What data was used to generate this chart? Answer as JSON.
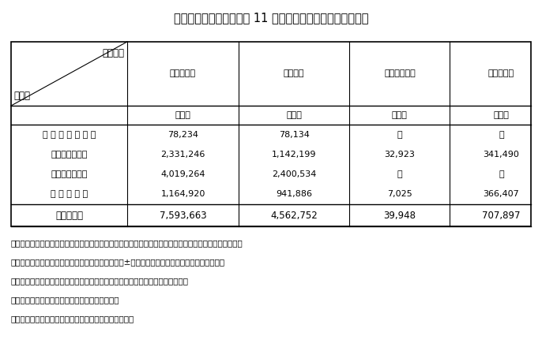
{
  "title": "（表１－１－１）　平成 11 年度における防災関係予算額等",
  "background_color": "#ffffff",
  "header_diagonal_top": "予算額等",
  "header_diagonal_bottom": "項　目",
  "col_headers": [
    "事　業　費",
    "国　　費",
    "公団等支出額",
    "融資実行額"
  ],
  "unit_row": [
    "百万円",
    "百万円",
    "百万円",
    "百万円"
  ],
  "row_labels": [
    "科 学 技 術 の 研 究",
    "災　害　予　防",
    "国　土　保　全",
    "災 害 復 旧 等"
  ],
  "data": [
    [
      "78,234",
      "78,134",
      "－",
      "－"
    ],
    [
      "2,331,246",
      "1,142,199",
      "32,923",
      "341,490"
    ],
    [
      "4,019,264",
      "2,400,534",
      "－",
      "－"
    ],
    [
      "1,164,920",
      "941,886",
      "7,025",
      "366,407"
    ]
  ],
  "total_label": "合　　　計",
  "total_row": [
    "7,593,663",
    "4,562,752",
    "39,948",
    "707,897"
  ],
  "notes": [
    "（注）　１　政府の一般会計と特別会計との間及び政府関係機関との間の重複計数を除いたものである。",
    "　　　　２　国費は，当初予算＋予備費＋補正予算±流用により計算した補正後予算額である。",
    "　　　　３　各項目及び合計はそれぞれ百万円未満を四捨五入した数値である。",
    "　　　　４　ＮＴＴ－Ａ事業を含んだ額である。",
    "　　　　５　ＮＴＴ事業償還時補助は含まれていない。"
  ]
}
